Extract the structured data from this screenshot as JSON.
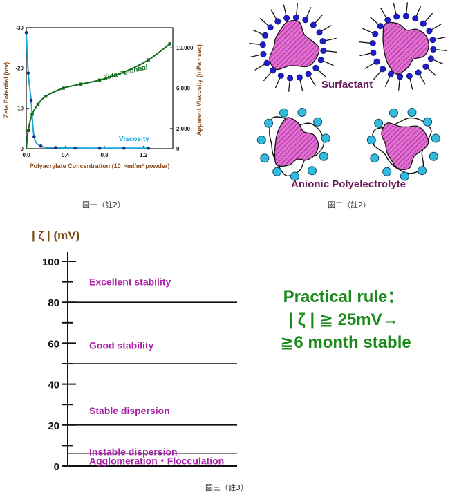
{
  "figure1": {
    "caption": "圖一（註2）",
    "left_axis_label": "Zeta Potential (mv)",
    "right_axis_label": "Apparent Viscosity (mPa · sec)",
    "x_axis_label": "Polyacrylate Concentration (10⁻⁴ml/m² powder)",
    "series_labels": {
      "zeta": "Zeta Potential",
      "viscosity": "Viscosity"
    },
    "colors": {
      "zeta": "#0f6a19",
      "viscosity": "#19a8d8",
      "marker": "#1a2a7a",
      "axis_label": "#8a4a1a"
    }
  },
  "figure2": {
    "caption": "圖二（註2）",
    "top_label": "Surfactant",
    "bottom_label": "Anionic Polyelectrolyte",
    "colors": {
      "particle": "#cc33aa",
      "surfactant_head": "#1e1ec8",
      "polyelectrolyte": "#33bbdd",
      "label": "#6a1a5a"
    }
  },
  "figure3": {
    "caption": "圖三（註3）",
    "axis_title": "| ζ | (mV)",
    "rule_lines": [
      "Practical rule：",
      "| ζ | ≧ 25mV→",
      "≧6 month stable"
    ],
    "bands": [
      {
        "label": "Excellent stability",
        "at": 90
      },
      {
        "label": "Good stability",
        "at": 59
      },
      {
        "label": "Stable dispersion",
        "at": 27
      },
      {
        "label": "Instable dispersion",
        "at": 7
      },
      {
        "label": "Agglomeration・Flocculation",
        "at": 2.5
      }
    ],
    "divider_values": [
      80,
      50,
      20,
      6
    ],
    "colors": {
      "band_label": "#aa22aa",
      "rule": "#1a8a1a",
      "axis_title": "#7a4a10"
    }
  },
  "chart_data": [
    {
      "type": "line",
      "x_tick_labels": [
        "0.0",
        "0.4",
        "0.8",
        "1.2"
      ],
      "y_left_tick_labels": [
        "-30",
        "-20",
        "-10",
        "0"
      ],
      "y_right_tick_labels": [
        "10,000",
        "6,000",
        "2,000",
        "0"
      ],
      "xlim": [
        0,
        1.5
      ],
      "ylim_left": [
        0,
        -30
      ],
      "ylim_right": [
        0,
        12000
      ],
      "series": [
        {
          "name": "Zeta Potential",
          "axis": "left",
          "x": [
            0.0,
            0.02,
            0.06,
            0.12,
            0.2,
            0.38,
            0.56,
            0.75,
            1.0,
            1.25,
            1.47
          ],
          "y": [
            0,
            -4.5,
            -8.5,
            -11,
            -13,
            -15,
            -16,
            -17,
            -19,
            -22,
            -26
          ]
        },
        {
          "name": "Viscosity",
          "axis": "right",
          "x": [
            0.0,
            0.02,
            0.05,
            0.08,
            0.15,
            0.3,
            0.5,
            0.75,
            1.0,
            1.25
          ],
          "y": [
            11500,
            7500,
            4800,
            1200,
            250,
            100,
            60,
            50,
            50,
            50
          ]
        }
      ]
    },
    {
      "type": "table",
      "ytick_labels": [
        "0",
        "20",
        "40",
        "60",
        "80",
        "100"
      ],
      "ylim": [
        0,
        105
      ]
    }
  ]
}
